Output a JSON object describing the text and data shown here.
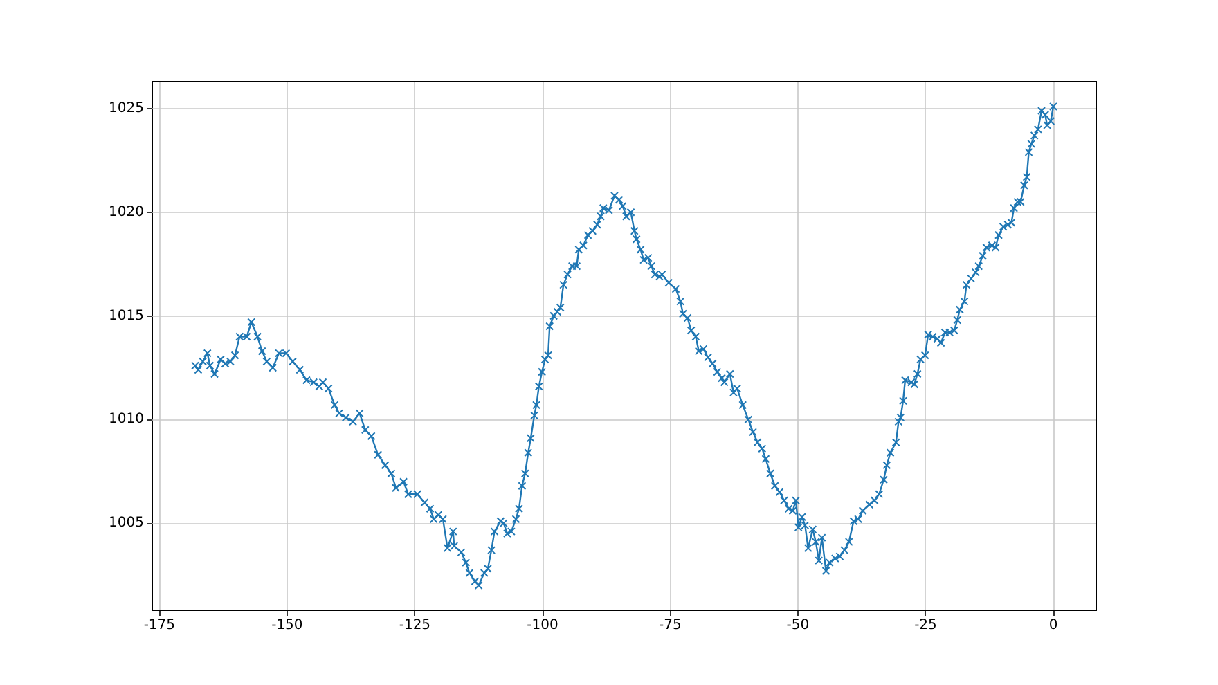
{
  "chart_data": {
    "type": "line",
    "color": "#1f77b4",
    "marker": "cross",
    "line_style": "solid",
    "grid": true,
    "xlim": [
      -176.4,
      8.4
    ],
    "ylim": [
      1000.8,
      1026.3
    ],
    "xticks": [
      -175,
      -150,
      -125,
      -100,
      -75,
      -50,
      -25,
      0
    ],
    "yticks": [
      1005,
      1010,
      1015,
      1020,
      1025
    ],
    "x": [
      -168,
      -167.4,
      -166.5,
      -165.6,
      -165.1,
      -164.2,
      -163,
      -162.1,
      -161.1,
      -160.2,
      -159.3,
      -157.9,
      -157,
      -155.8,
      -154.9,
      -154,
      -152.8,
      -151.6,
      -150.2,
      -148.9,
      -147.5,
      -146.2,
      -144.8,
      -143.7,
      -143,
      -141.9,
      -140.7,
      -139.8,
      -138.5,
      -137.1,
      -135.8,
      -134.7,
      -133.5,
      -132.2,
      -130.8,
      -129.6,
      -128.7,
      -127.2,
      -126.3,
      -124.5,
      -123.1,
      -122,
      -121.3,
      -120.4,
      -119.5,
      -118.6,
      -117.5,
      -117.3,
      -115.9,
      -115,
      -114.3,
      -113.2,
      -112.5,
      -111.4,
      -110.7,
      -110,
      -109.4,
      -108.2,
      -107.6,
      -106.9,
      -106.1,
      -105.2,
      -104.6,
      -104,
      -103.4,
      -102.8,
      -102.3,
      -101.6,
      -101.2,
      -100.7,
      -100.1,
      -99.5,
      -98.9,
      -98.6,
      -97.8,
      -97.1,
      -96.5,
      -95.9,
      -95.1,
      -94.2,
      -93.3,
      -92.9,
      -92,
      -91.1,
      -90.2,
      -89.3,
      -88.6,
      -88.1,
      -87,
      -85.9,
      -85,
      -84.3,
      -83.6,
      -82.7,
      -82,
      -81.6,
      -80.8,
      -80.2,
      -79.3,
      -78.7,
      -78,
      -77.1,
      -76.6,
      -75.3,
      -73.9,
      -73,
      -72.5,
      -71.6,
      -70.9,
      -70,
      -69.4,
      -68.5,
      -67.6,
      -66.7,
      -65.8,
      -64.9,
      -64.4,
      -63.3,
      -62.6,
      -61.9,
      -60.8,
      -59.7,
      -58.8,
      -57.9,
      -57,
      -56.3,
      -55.4,
      -54.5,
      -53.6,
      -52.7,
      -51.8,
      -51,
      -50.4,
      -49.9,
      -49.2,
      -48.6,
      -48,
      -47.1,
      -46.5,
      -45.9,
      -45.3,
      -44.5,
      -43.8,
      -42.7,
      -41.8,
      -40.9,
      -40,
      -39.1,
      -38.2,
      -37.3,
      -36,
      -35,
      -34.1,
      -33.2,
      -32.6,
      -31.9,
      -30.8,
      -30.3,
      -29.9,
      -29.4,
      -29,
      -27.8,
      -27.2,
      -26.6,
      -26,
      -25.1,
      -24.5,
      -23.6,
      -22.7,
      -22,
      -21.2,
      -20.3,
      -19.4,
      -18.8,
      -18.3,
      -17.4,
      -17,
      -16.1,
      -15.2,
      -14.6,
      -13.8,
      -13.1,
      -12,
      -11.3,
      -10.7,
      -9.8,
      -8.9,
      -8.2,
      -7.7,
      -7,
      -6.4,
      -5.7,
      -5.2,
      -4.8,
      -4.3,
      -3.7,
      -3,
      -2.3,
      -1.6,
      -1.2,
      -0.5,
      0
    ],
    "values": [
      1012.6,
      1012.4,
      1012.8,
      1013.2,
      1012.6,
      1012.2,
      1012.9,
      1012.7,
      1012.8,
      1013.1,
      1014,
      1014,
      1014.7,
      1014,
      1013.3,
      1012.8,
      1012.5,
      1013.2,
      1013.2,
      1012.8,
      1012.4,
      1011.9,
      1011.8,
      1011.6,
      1011.8,
      1011.5,
      1010.7,
      1010.3,
      1010.1,
      1009.9,
      1010.3,
      1009.5,
      1009.2,
      1008.3,
      1007.8,
      1007.4,
      1006.7,
      1007,
      1006.4,
      1006.4,
      1006,
      1005.7,
      1005.2,
      1005.4,
      1005.2,
      1003.8,
      1004.6,
      1003.9,
      1003.6,
      1003.1,
      1002.6,
      1002.2,
      1002,
      1002.6,
      1002.8,
      1003.7,
      1004.6,
      1005.1,
      1005,
      1004.5,
      1004.6,
      1005.2,
      1005.7,
      1006.8,
      1007.4,
      1008.4,
      1009.1,
      1010.2,
      1010.7,
      1011.6,
      1012.3,
      1012.9,
      1013.1,
      1014.5,
      1015,
      1015.2,
      1015.4,
      1016.5,
      1017,
      1017.4,
      1017.4,
      1018.2,
      1018.4,
      1018.9,
      1019.1,
      1019.4,
      1019.8,
      1020.2,
      1020.1,
      1020.8,
      1020.6,
      1020.3,
      1019.8,
      1020,
      1019.1,
      1018.7,
      1018.2,
      1017.7,
      1017.8,
      1017.4,
      1017,
      1016.9,
      1017,
      1016.6,
      1016.3,
      1015.7,
      1015.1,
      1014.9,
      1014.3,
      1014,
      1013.3,
      1013.4,
      1013,
      1012.7,
      1012.3,
      1012,
      1011.8,
      1012.2,
      1011.3,
      1011.5,
      1010.7,
      1010,
      1009.4,
      1008.9,
      1008.6,
      1008.1,
      1007.4,
      1006.8,
      1006.5,
      1006.1,
      1005.7,
      1005.6,
      1006.1,
      1004.8,
      1005.3,
      1004.9,
      1003.8,
      1004.7,
      1004.1,
      1003.2,
      1004.3,
      1002.7,
      1003.1,
      1003.3,
      1003.4,
      1003.7,
      1004.1,
      1005.1,
      1005.2,
      1005.6,
      1005.9,
      1006.1,
      1006.4,
      1007.1,
      1007.8,
      1008.4,
      1008.9,
      1009.9,
      1010.1,
      1010.9,
      1011.9,
      1011.8,
      1011.7,
      1012.2,
      1012.9,
      1013.1,
      1014.1,
      1014,
      1013.9,
      1013.7,
      1014.2,
      1014.2,
      1014.3,
      1014.8,
      1015.3,
      1015.7,
      1016.5,
      1016.8,
      1017.1,
      1017.4,
      1017.9,
      1018.3,
      1018.4,
      1018.3,
      1018.9,
      1019.3,
      1019.4,
      1019.5,
      1020.2,
      1020.5,
      1020.5,
      1021.3,
      1021.7,
      1022.9,
      1023.3,
      1023.7,
      1024,
      1024.9,
      1024.7,
      1024.2,
      1024.4,
      1025.1
    ]
  }
}
